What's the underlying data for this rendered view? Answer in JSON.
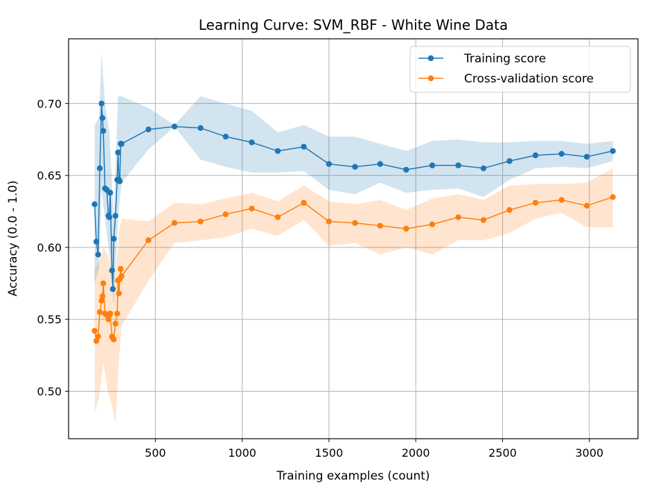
{
  "chart_data": {
    "type": "line",
    "title": "Learning Curve: SVM_RBF - White Wine Data",
    "xlabel": "Training examples (count)",
    "ylabel": "Accuracy (0.0 - 1.0)",
    "xlim": [
      0,
      3280
    ],
    "ylim": [
      0.467,
      0.745
    ],
    "xticks": [
      500,
      1000,
      1500,
      2000,
      2500,
      3000
    ],
    "yticks": [
      0.5,
      0.55,
      0.6,
      0.65,
      0.7
    ],
    "grid": true,
    "legend_position": "upper right",
    "series": [
      {
        "name": "Training score",
        "color": "#1f77b4",
        "points": [
          [
            150,
            0.63
          ],
          [
            160,
            0.604
          ],
          [
            170,
            0.595
          ],
          [
            180,
            0.655
          ],
          [
            190,
            0.7
          ],
          [
            195,
            0.69
          ],
          [
            200,
            0.681
          ],
          [
            210,
            0.641
          ],
          [
            220,
            0.64
          ],
          [
            230,
            0.622
          ],
          [
            235,
            0.621
          ],
          [
            240,
            0.638
          ],
          [
            250,
            0.584
          ],
          [
            255,
            0.571
          ],
          [
            260,
            0.606
          ],
          [
            270,
            0.622
          ],
          [
            280,
            0.647
          ],
          [
            285,
            0.666
          ],
          [
            290,
            0.647
          ],
          [
            295,
            0.646
          ],
          [
            300,
            0.672
          ],
          [
            305,
            0.672
          ],
          [
            460,
            0.682
          ],
          [
            610,
            0.684
          ],
          [
            760,
            0.683
          ],
          [
            905,
            0.677
          ],
          [
            1055,
            0.673
          ],
          [
            1205,
            0.667
          ],
          [
            1355,
            0.67
          ],
          [
            1500,
            0.658
          ],
          [
            1650,
            0.656
          ],
          [
            1795,
            0.658
          ],
          [
            1945,
            0.654
          ],
          [
            2095,
            0.657
          ],
          [
            2245,
            0.657
          ],
          [
            2390,
            0.655
          ],
          [
            2540,
            0.66
          ],
          [
            2690,
            0.664
          ],
          [
            2840,
            0.665
          ],
          [
            2985,
            0.663
          ],
          [
            3135,
            0.667
          ]
        ],
        "band_x": [
          150,
          175,
          190,
          210,
          235,
          260,
          285,
          305,
          460,
          610,
          760,
          905,
          1055,
          1205,
          1355,
          1500,
          1650,
          1795,
          1945,
          2095,
          2245,
          2390,
          2540,
          2690,
          2840,
          2985,
          3135
        ],
        "band_lower": [
          0.575,
          0.585,
          0.64,
          0.62,
          0.595,
          0.56,
          0.62,
          0.645,
          0.668,
          0.684,
          0.661,
          0.656,
          0.652,
          0.652,
          0.653,
          0.64,
          0.637,
          0.645,
          0.638,
          0.64,
          0.641,
          0.635,
          0.647,
          0.655,
          0.656,
          0.655,
          0.66
        ],
        "band_upper": [
          0.685,
          0.69,
          0.735,
          0.7,
          0.68,
          0.62,
          0.705,
          0.705,
          0.697,
          0.685,
          0.705,
          0.7,
          0.695,
          0.68,
          0.685,
          0.677,
          0.677,
          0.672,
          0.667,
          0.674,
          0.675,
          0.673,
          0.673,
          0.674,
          0.674,
          0.672,
          0.674
        ]
      },
      {
        "name": "Cross-validation score",
        "color": "#ff7f0e",
        "points": [
          [
            150,
            0.542
          ],
          [
            160,
            0.535
          ],
          [
            170,
            0.538
          ],
          [
            180,
            0.555
          ],
          [
            190,
            0.563
          ],
          [
            195,
            0.566
          ],
          [
            200,
            0.575
          ],
          [
            210,
            0.554
          ],
          [
            220,
            0.553
          ],
          [
            230,
            0.55
          ],
          [
            235,
            0.553
          ],
          [
            240,
            0.554
          ],
          [
            250,
            0.538
          ],
          [
            255,
            0.537
          ],
          [
            260,
            0.536
          ],
          [
            270,
            0.547
          ],
          [
            280,
            0.554
          ],
          [
            285,
            0.577
          ],
          [
            290,
            0.568
          ],
          [
            295,
            0.578
          ],
          [
            300,
            0.585
          ],
          [
            305,
            0.58
          ],
          [
            460,
            0.605
          ],
          [
            610,
            0.617
          ],
          [
            760,
            0.618
          ],
          [
            905,
            0.623
          ],
          [
            1055,
            0.627
          ],
          [
            1205,
            0.621
          ],
          [
            1355,
            0.631
          ],
          [
            1500,
            0.618
          ],
          [
            1650,
            0.617
          ],
          [
            1795,
            0.615
          ],
          [
            1945,
            0.613
          ],
          [
            2095,
            0.616
          ],
          [
            2245,
            0.621
          ],
          [
            2390,
            0.619
          ],
          [
            2540,
            0.626
          ],
          [
            2690,
            0.631
          ],
          [
            2840,
            0.633
          ],
          [
            2985,
            0.629
          ],
          [
            3135,
            0.635
          ]
        ],
        "band_x": [
          150,
          175,
          200,
          225,
          250,
          270,
          290,
          305,
          460,
          610,
          760,
          905,
          1055,
          1205,
          1355,
          1500,
          1650,
          1795,
          1945,
          2095,
          2245,
          2390,
          2540,
          2690,
          2840,
          2985,
          3135
        ],
        "band_lower": [
          0.485,
          0.495,
          0.52,
          0.5,
          0.49,
          0.478,
          0.52,
          0.545,
          0.577,
          0.603,
          0.605,
          0.607,
          0.613,
          0.608,
          0.619,
          0.601,
          0.603,
          0.595,
          0.6,
          0.595,
          0.605,
          0.605,
          0.61,
          0.62,
          0.624,
          0.614,
          0.614
        ],
        "band_upper": [
          0.585,
          0.59,
          0.6,
          0.595,
          0.585,
          0.58,
          0.61,
          0.62,
          0.618,
          0.631,
          0.63,
          0.634,
          0.638,
          0.632,
          0.643,
          0.632,
          0.63,
          0.633,
          0.626,
          0.634,
          0.637,
          0.633,
          0.643,
          0.644,
          0.644,
          0.645,
          0.655
        ]
      }
    ]
  }
}
